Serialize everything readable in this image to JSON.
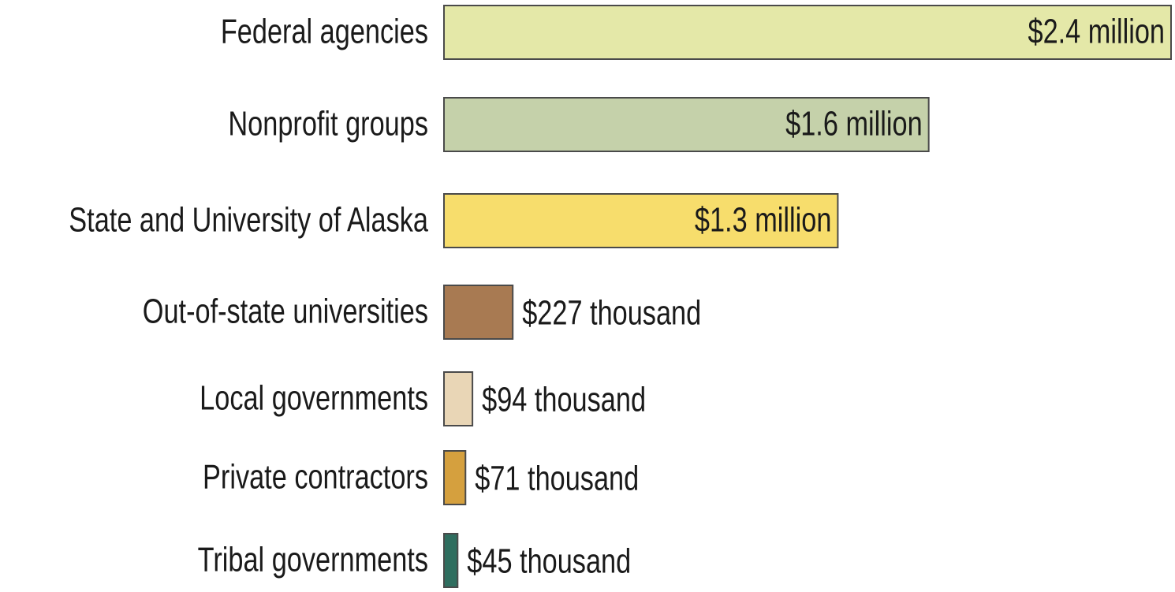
{
  "chart_data": {
    "type": "bar",
    "orientation": "horizontal",
    "categories": [
      "Federal agencies",
      "Nonprofit groups",
      "State and University of Alaska",
      "Out-of-state universities",
      "Local governments",
      "Private contractors",
      "Tribal governments"
    ],
    "values": [
      2400000,
      1600000,
      1300000,
      227000,
      94000,
      71000,
      45000
    ],
    "value_labels": [
      "$2.4 million",
      "$1.6 million",
      "$1.3 million",
      "$227 thousand",
      "$94 thousand",
      "$71 thousand",
      "$45 thousand"
    ],
    "colors": [
      "#e4e8a8",
      "#c5d1aa",
      "#f7dd6c",
      "#a87a52",
      "#e9d6b6",
      "#d5a03e",
      "#2f6e5f"
    ]
  }
}
